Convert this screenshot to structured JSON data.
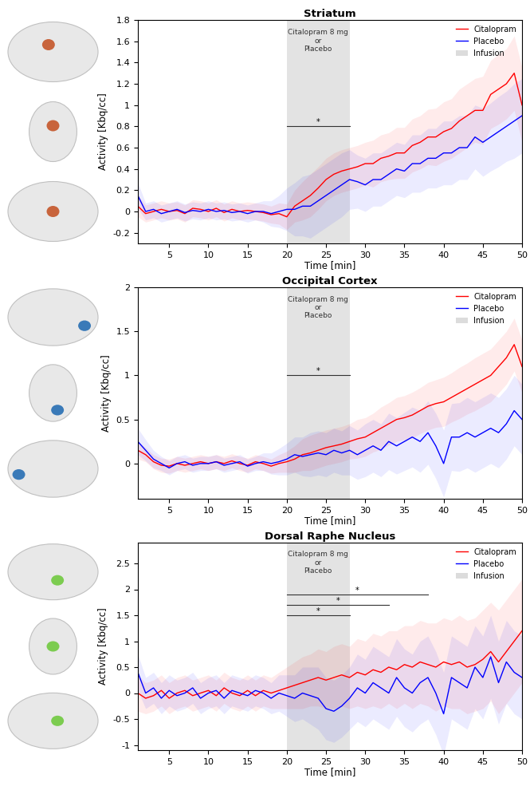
{
  "chart_data": [
    {
      "type": "line",
      "title": "Striatum",
      "x_label": "Time [min]",
      "y_label": "Activity [Kbq/cc]",
      "x": [
        1,
        2,
        3,
        4,
        5,
        6,
        7,
        8,
        9,
        10,
        11,
        12,
        13,
        14,
        15,
        16,
        17,
        18,
        19,
        20,
        21,
        22,
        23,
        24,
        25,
        26,
        27,
        28,
        29,
        30,
        31,
        32,
        33,
        34,
        35,
        36,
        37,
        38,
        39,
        40,
        41,
        42,
        43,
        44,
        45,
        46,
        47,
        48,
        49,
        50
      ],
      "xlim": [
        1,
        50
      ],
      "xticks": [
        5,
        10,
        15,
        20,
        25,
        30,
        35,
        40,
        45,
        50
      ],
      "ylim": [
        -0.3,
        1.8
      ],
      "yticks": [
        -0.2,
        0,
        0.2,
        0.4,
        0.6,
        0.8,
        1,
        1.2,
        1.4,
        1.6,
        1.8
      ],
      "legend": "upper right",
      "grid": false,
      "infusion": {
        "name": "Infusion",
        "range": [
          20,
          28
        ],
        "label": "Citalopram 8 mg\nor\nPlacebo",
        "color": "#dcdcdc"
      },
      "significance": [
        {
          "range": [
            20,
            28
          ],
          "y": 0.8,
          "label": "*"
        }
      ],
      "series": [
        {
          "name": "Citalopram",
          "color": "#ff0000",
          "values": [
            0.05,
            -0.02,
            0.0,
            0.02,
            0.0,
            0.01,
            -0.02,
            0.03,
            0.02,
            0.0,
            0.03,
            -0.01,
            0.02,
            0.0,
            0.01,
            0.0,
            -0.01,
            -0.03,
            -0.02,
            -0.05,
            0.05,
            0.1,
            0.15,
            0.22,
            0.3,
            0.35,
            0.38,
            0.4,
            0.42,
            0.45,
            0.45,
            0.5,
            0.52,
            0.55,
            0.55,
            0.62,
            0.65,
            0.7,
            0.7,
            0.75,
            0.78,
            0.85,
            0.9,
            0.95,
            0.95,
            1.1,
            1.15,
            1.2,
            1.3,
            1.0
          ],
          "error": [
            0.1,
            0.08,
            0.08,
            0.08,
            0.08,
            0.08,
            0.08,
            0.08,
            0.08,
            0.08,
            0.08,
            0.08,
            0.08,
            0.08,
            0.08,
            0.08,
            0.08,
            0.08,
            0.1,
            0.12,
            0.15,
            0.18,
            0.2,
            0.2,
            0.2,
            0.2,
            0.2,
            0.2,
            0.2,
            0.2,
            0.22,
            0.22,
            0.22,
            0.24,
            0.24,
            0.25,
            0.25,
            0.26,
            0.27,
            0.28,
            0.28,
            0.3,
            0.3,
            0.3,
            0.32,
            0.32,
            0.33,
            0.33,
            0.35,
            0.35
          ]
        },
        {
          "name": "Placebo",
          "color": "#0000ff",
          "values": [
            0.15,
            0.0,
            0.02,
            -0.02,
            0.0,
            0.02,
            -0.01,
            0.01,
            0.0,
            0.02,
            0.0,
            0.01,
            -0.01,
            0.0,
            -0.02,
            0.0,
            0.0,
            -0.02,
            0.0,
            0.02,
            0.02,
            0.05,
            0.05,
            0.1,
            0.15,
            0.2,
            0.25,
            0.3,
            0.28,
            0.25,
            0.3,
            0.3,
            0.35,
            0.4,
            0.38,
            0.45,
            0.45,
            0.5,
            0.5,
            0.55,
            0.55,
            0.6,
            0.6,
            0.7,
            0.65,
            0.7,
            0.75,
            0.8,
            0.85,
            0.9
          ],
          "error": [
            0.12,
            0.08,
            0.08,
            0.08,
            0.08,
            0.08,
            0.08,
            0.08,
            0.08,
            0.08,
            0.08,
            0.08,
            0.08,
            0.08,
            0.08,
            0.08,
            0.1,
            0.12,
            0.15,
            0.2,
            0.25,
            0.28,
            0.3,
            0.3,
            0.3,
            0.3,
            0.3,
            0.28,
            0.25,
            0.25,
            0.25,
            0.25,
            0.25,
            0.25,
            0.25,
            0.27,
            0.27,
            0.28,
            0.28,
            0.3,
            0.3,
            0.3,
            0.3,
            0.3,
            0.32,
            0.32,
            0.33,
            0.33,
            0.35,
            0.35
          ]
        }
      ]
    },
    {
      "type": "line",
      "title": "Occipital Cortex",
      "x_label": "Time [min]",
      "y_label": "Activity [Kbq/cc]",
      "x": [
        1,
        2,
        3,
        4,
        5,
        6,
        7,
        8,
        9,
        10,
        11,
        12,
        13,
        14,
        15,
        16,
        17,
        18,
        19,
        20,
        21,
        22,
        23,
        24,
        25,
        26,
        27,
        28,
        29,
        30,
        31,
        32,
        33,
        34,
        35,
        36,
        37,
        38,
        39,
        40,
        41,
        42,
        43,
        44,
        45,
        46,
        47,
        48,
        49,
        50
      ],
      "xlim": [
        1,
        50
      ],
      "xticks": [
        5,
        10,
        15,
        20,
        25,
        30,
        35,
        40,
        45,
        50
      ],
      "ylim": [
        -0.4,
        2
      ],
      "yticks": [
        0,
        0.5,
        1,
        1.5,
        2
      ],
      "legend": "upper right",
      "grid": false,
      "infusion": {
        "name": "Infusion",
        "range": [
          20,
          28
        ],
        "label": "Citalopram 8 mg\nor\nPlacebo",
        "color": "#dcdcdc"
      },
      "significance": [
        {
          "range": [
            20,
            28
          ],
          "y": 1.0,
          "label": "*"
        }
      ],
      "series": [
        {
          "name": "Citalopram",
          "color": "#ff0000",
          "values": [
            0.15,
            0.1,
            0.02,
            -0.02,
            -0.03,
            0.0,
            -0.02,
            0.0,
            0.02,
            0.0,
            0.02,
            0.0,
            0.03,
            0.0,
            -0.02,
            0.02,
            0.0,
            -0.03,
            0.0,
            0.02,
            0.05,
            0.1,
            0.12,
            0.15,
            0.18,
            0.2,
            0.22,
            0.25,
            0.28,
            0.3,
            0.35,
            0.4,
            0.45,
            0.5,
            0.52,
            0.55,
            0.6,
            0.65,
            0.68,
            0.7,
            0.75,
            0.8,
            0.85,
            0.9,
            0.95,
            1.0,
            1.1,
            1.2,
            1.35,
            1.1
          ],
          "error": [
            0.1,
            0.08,
            0.08,
            0.08,
            0.08,
            0.08,
            0.08,
            0.08,
            0.08,
            0.08,
            0.08,
            0.08,
            0.08,
            0.08,
            0.08,
            0.08,
            0.08,
            0.08,
            0.1,
            0.12,
            0.15,
            0.18,
            0.2,
            0.2,
            0.2,
            0.2,
            0.2,
            0.2,
            0.22,
            0.22,
            0.22,
            0.24,
            0.24,
            0.25,
            0.25,
            0.26,
            0.26,
            0.27,
            0.27,
            0.28,
            0.28,
            0.29,
            0.29,
            0.3,
            0.3,
            0.3,
            0.3,
            0.3,
            0.3,
            0.3
          ]
        },
        {
          "name": "Placebo",
          "color": "#0000ff",
          "values": [
            0.25,
            0.15,
            0.05,
            0.0,
            -0.05,
            0.0,
            0.02,
            -0.02,
            0.0,
            0.0,
            0.02,
            -0.02,
            0.0,
            0.02,
            -0.03,
            0.0,
            0.02,
            0.0,
            0.02,
            0.05,
            0.1,
            0.08,
            0.1,
            0.12,
            0.1,
            0.15,
            0.12,
            0.15,
            0.1,
            0.15,
            0.2,
            0.15,
            0.25,
            0.2,
            0.25,
            0.3,
            0.25,
            0.35,
            0.2,
            0.0,
            0.3,
            0.3,
            0.35,
            0.3,
            0.35,
            0.4,
            0.35,
            0.45,
            0.6,
            0.5
          ],
          "error": [
            0.15,
            0.12,
            0.1,
            0.08,
            0.08,
            0.08,
            0.08,
            0.08,
            0.08,
            0.08,
            0.08,
            0.08,
            0.08,
            0.08,
            0.08,
            0.08,
            0.1,
            0.12,
            0.15,
            0.18,
            0.2,
            0.22,
            0.25,
            0.25,
            0.25,
            0.25,
            0.25,
            0.28,
            0.28,
            0.3,
            0.3,
            0.3,
            0.32,
            0.32,
            0.33,
            0.34,
            0.35,
            0.36,
            0.37,
            0.38,
            0.38,
            0.39,
            0.4,
            0.4,
            0.4,
            0.4,
            0.4,
            0.4,
            0.4,
            0.4
          ]
        }
      ]
    },
    {
      "type": "line",
      "title": "Dorsal Raphe Nucleus",
      "x_label": "Time [min]",
      "y_label": "Activity [Kbq/cc]",
      "x": [
        1,
        2,
        3,
        4,
        5,
        6,
        7,
        8,
        9,
        10,
        11,
        12,
        13,
        14,
        15,
        16,
        17,
        18,
        19,
        20,
        21,
        22,
        23,
        24,
        25,
        26,
        27,
        28,
        29,
        30,
        31,
        32,
        33,
        34,
        35,
        36,
        37,
        38,
        39,
        40,
        41,
        42,
        43,
        44,
        45,
        46,
        47,
        48,
        49,
        50
      ],
      "xlim": [
        1,
        50
      ],
      "xticks": [
        5,
        10,
        15,
        20,
        25,
        30,
        35,
        40,
        45,
        50
      ],
      "ylim": [
        -1.1,
        2.9
      ],
      "yticks": [
        -1,
        -0.5,
        0,
        0.5,
        1,
        1.5,
        2,
        2.5
      ],
      "legend": "upper right",
      "grid": false,
      "infusion": {
        "name": "Infusion",
        "range": [
          20,
          28
        ],
        "label": "Citalopram 8 mg\nor\nPlacebo",
        "color": "#dcdcdc"
      },
      "significance": [
        {
          "range": [
            20,
            38
          ],
          "y": 1.9,
          "label": "*"
        },
        {
          "range": [
            20,
            33
          ],
          "y": 1.7,
          "label": "*"
        },
        {
          "range": [
            20,
            28
          ],
          "y": 1.5,
          "label": "*"
        }
      ],
      "series": [
        {
          "name": "Citalopram",
          "color": "#ff0000",
          "values": [
            0.0,
            -0.1,
            -0.05,
            0.05,
            -0.1,
            0.0,
            0.05,
            -0.05,
            0.0,
            0.05,
            -0.05,
            0.1,
            0.0,
            -0.05,
            0.05,
            -0.05,
            0.05,
            0.0,
            0.05,
            0.1,
            0.15,
            0.2,
            0.25,
            0.3,
            0.25,
            0.3,
            0.35,
            0.3,
            0.4,
            0.35,
            0.45,
            0.4,
            0.5,
            0.45,
            0.55,
            0.5,
            0.6,
            0.55,
            0.5,
            0.6,
            0.55,
            0.6,
            0.5,
            0.55,
            0.65,
            0.8,
            0.6,
            0.8,
            1.0,
            1.2
          ],
          "error": [
            0.35,
            0.3,
            0.3,
            0.3,
            0.3,
            0.3,
            0.3,
            0.3,
            0.3,
            0.3,
            0.3,
            0.3,
            0.3,
            0.3,
            0.3,
            0.3,
            0.3,
            0.3,
            0.35,
            0.4,
            0.45,
            0.5,
            0.5,
            0.55,
            0.55,
            0.6,
            0.6,
            0.6,
            0.65,
            0.65,
            0.7,
            0.7,
            0.7,
            0.75,
            0.75,
            0.8,
            0.8,
            0.8,
            0.85,
            0.85,
            0.85,
            0.9,
            0.9,
            0.9,
            0.95,
            0.95,
            1.0,
            1.0,
            1.0,
            1.0
          ]
        },
        {
          "name": "Placebo",
          "color": "#0000ff",
          "values": [
            0.4,
            0.0,
            0.1,
            -0.1,
            0.05,
            -0.05,
            0.0,
            0.1,
            -0.1,
            0.0,
            0.05,
            -0.1,
            0.05,
            0.0,
            -0.05,
            0.05,
            0.0,
            -0.1,
            0.0,
            -0.05,
            -0.1,
            0.0,
            -0.05,
            -0.1,
            -0.3,
            -0.35,
            -0.25,
            -0.1,
            0.1,
            0.0,
            0.2,
            0.1,
            0.0,
            0.3,
            0.1,
            0.0,
            0.2,
            0.3,
            0.0,
            -0.4,
            0.3,
            0.2,
            0.1,
            0.5,
            0.3,
            0.7,
            0.2,
            0.6,
            0.4,
            0.3
          ],
          "error": [
            0.35,
            0.3,
            0.3,
            0.3,
            0.3,
            0.3,
            0.3,
            0.3,
            0.3,
            0.3,
            0.3,
            0.3,
            0.3,
            0.3,
            0.3,
            0.3,
            0.3,
            0.3,
            0.35,
            0.4,
            0.45,
            0.5,
            0.55,
            0.6,
            0.6,
            0.6,
            0.6,
            0.6,
            0.65,
            0.65,
            0.7,
            0.7,
            0.7,
            0.75,
            0.75,
            0.75,
            0.8,
            0.8,
            0.8,
            0.8,
            0.8,
            0.8,
            0.8,
            0.8,
            0.8,
            0.8,
            0.8,
            0.8,
            0.8,
            0.8
          ]
        }
      ]
    }
  ]
}
